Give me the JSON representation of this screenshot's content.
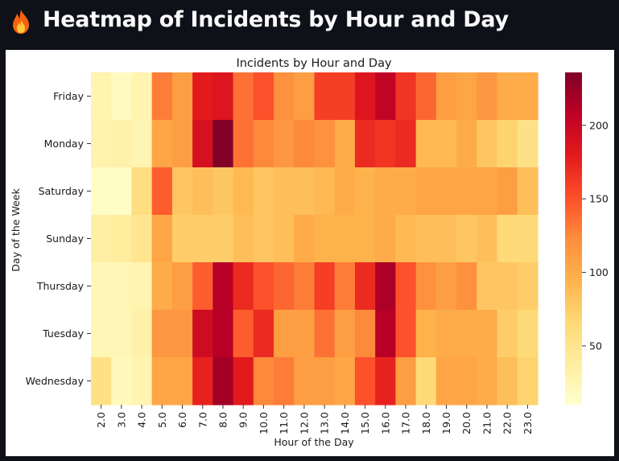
{
  "app": {
    "title": "Heatmap of Incidents by Hour and Day",
    "icon": "fire-icon"
  },
  "chart_data": {
    "type": "heatmap",
    "title": "Incidents by Hour and Day",
    "xlabel": "Hour of the Day",
    "ylabel": "Day of the Week",
    "x": [
      "2.0",
      "3.0",
      "4.0",
      "5.0",
      "6.0",
      "7.0",
      "8.0",
      "9.0",
      "10.0",
      "11.0",
      "12.0",
      "13.0",
      "14.0",
      "15.0",
      "16.0",
      "17.0",
      "18.0",
      "19.0",
      "20.0",
      "21.0",
      "22.0",
      "23.0"
    ],
    "y": [
      "Friday",
      "Monday",
      "Saturday",
      "Sunday",
      "Thursday",
      "Tuesday",
      "Wednesday"
    ],
    "values": [
      [
        28,
        18,
        28,
        130,
        110,
        180,
        185,
        135,
        150,
        120,
        110,
        160,
        160,
        185,
        205,
        165,
        140,
        110,
        105,
        115,
        100,
        100
      ],
      [
        30,
        32,
        26,
        105,
        110,
        190,
        235,
        135,
        125,
        115,
        125,
        120,
        100,
        170,
        165,
        170,
        90,
        90,
        100,
        80,
        70,
        55
      ],
      [
        14,
        14,
        60,
        145,
        80,
        85,
        80,
        90,
        80,
        85,
        85,
        90,
        100,
        95,
        100,
        100,
        105,
        105,
        105,
        105,
        110,
        85
      ],
      [
        35,
        40,
        50,
        105,
        75,
        75,
        75,
        85,
        80,
        85,
        100,
        95,
        95,
        95,
        100,
        90,
        85,
        85,
        80,
        85,
        65,
        65
      ],
      [
        24,
        24,
        28,
        100,
        110,
        145,
        210,
        170,
        150,
        140,
        130,
        160,
        130,
        170,
        215,
        150,
        120,
        110,
        120,
        80,
        80,
        75
      ],
      [
        24,
        24,
        32,
        115,
        115,
        195,
        210,
        145,
        170,
        110,
        110,
        135,
        110,
        125,
        210,
        150,
        95,
        100,
        100,
        100,
        75,
        65
      ],
      [
        55,
        20,
        28,
        105,
        105,
        175,
        220,
        180,
        125,
        130,
        110,
        110,
        105,
        150,
        175,
        110,
        65,
        105,
        105,
        100,
        85,
        70
      ]
    ],
    "colorbar": {
      "ticks": [
        50,
        100,
        150,
        200
      ],
      "min": 10,
      "max": 236,
      "colormap": "YlOrRd"
    }
  }
}
